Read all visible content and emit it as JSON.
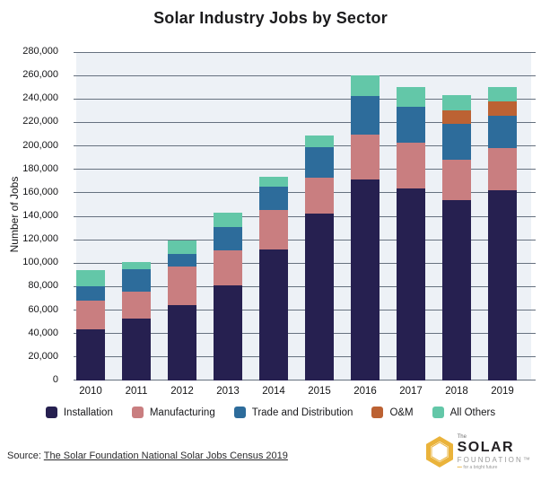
{
  "title": "Solar Industry Jobs by Sector",
  "chart_data": {
    "type": "bar",
    "stacked": true,
    "title": "Solar Industry Jobs by Sector",
    "xlabel": "",
    "ylabel": "Number of Jobs",
    "ylim": [
      0,
      280000
    ],
    "ytick_step": 20000,
    "yticks": [
      "0",
      "20,000",
      "40,000",
      "60,000",
      "80,000",
      "100,000",
      "120,000",
      "140,000",
      "160,000",
      "180,000",
      "200,000",
      "220,000",
      "240,000",
      "260,000",
      "280,000"
    ],
    "grid": true,
    "legend_position": "bottom",
    "categories": [
      "2010",
      "2011",
      "2012",
      "2013",
      "2014",
      "2015",
      "2016",
      "2017",
      "2018",
      "2019"
    ],
    "series": [
      {
        "name": "Installation",
        "color": "#262050",
        "values": [
          44000,
          53000,
          64000,
          81000,
          112000,
          142000,
          171000,
          164000,
          154000,
          162000
        ]
      },
      {
        "name": "Manufacturing",
        "color": "#c97e80",
        "values": [
          24000,
          23000,
          33000,
          30000,
          33000,
          31000,
          38500,
          39000,
          34000,
          36000
        ]
      },
      {
        "name": "Trade and Distribution",
        "color": "#2d6c9b",
        "values": [
          12000,
          19000,
          11000,
          20000,
          20000,
          26000,
          33000,
          30000,
          31000,
          28000
        ]
      },
      {
        "name": "O&M",
        "color": "#bc6233",
        "values": [
          0,
          0,
          0,
          0,
          0,
          0,
          0,
          0,
          11000,
          12000
        ]
      },
      {
        "name": "All Others",
        "color": "#63c7a8",
        "values": [
          14000,
          6000,
          11000,
          12000,
          9000,
          10000,
          17500,
          17000,
          13000,
          12000
        ]
      }
    ],
    "totals": [
      94000,
      101000,
      119000,
      143000,
      174000,
      209000,
      260000,
      250000,
      243000,
      250000
    ]
  },
  "legend": {
    "items": [
      {
        "label": "Installation",
        "color": "#262050"
      },
      {
        "label": "Manufacturing",
        "color": "#c97e80"
      },
      {
        "label": "Trade and Distribution",
        "color": "#2d6c9b"
      },
      {
        "label": "O&M",
        "color": "#bc6233"
      },
      {
        "label": "All Others",
        "color": "#63c7a8"
      }
    ]
  },
  "footer": {
    "source_prefix": "Source:",
    "source_link": "The Solar Foundation National Solar Jobs Census 2019"
  },
  "logo": {
    "the": "The",
    "name_line1": "SOLAR",
    "name_line2": "FOUNDATION™",
    "tagline": "for a bright future",
    "gold": "#eab33b"
  },
  "colors": {
    "plot_background": "#edf1f6",
    "gridline": "#66717f",
    "page_background": "#ffffff"
  }
}
